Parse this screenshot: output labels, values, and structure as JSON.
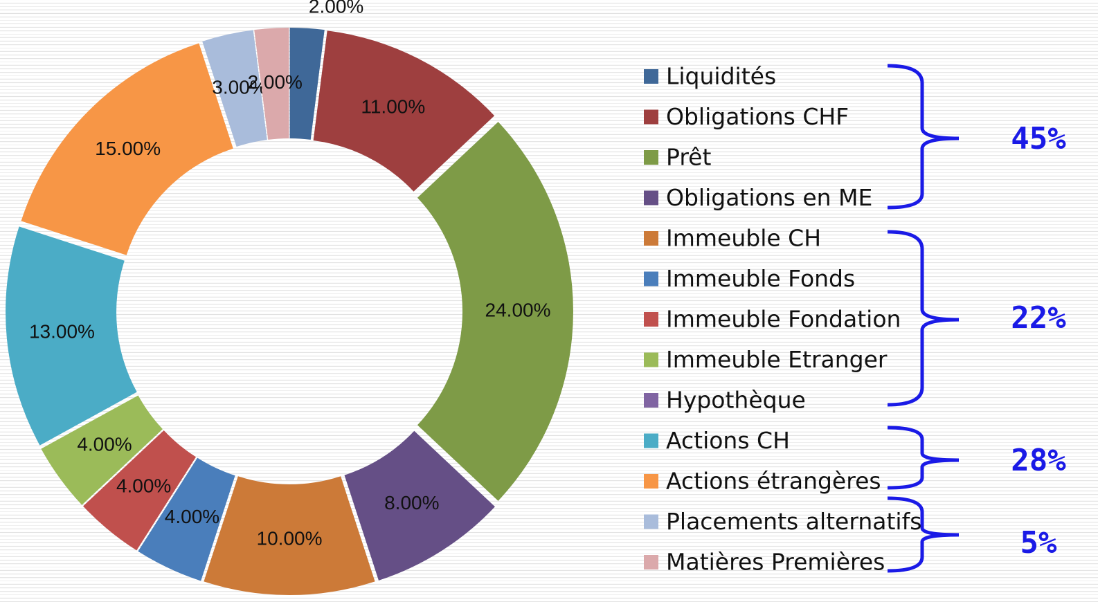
{
  "chart_data": {
    "type": "donut",
    "categories": [
      "Liquidités",
      "Obligations CHF",
      "Prêt",
      "Obligations en ME",
      "Immeuble CH",
      "Immeuble Fonds",
      "Immeuble Fondation",
      "Immeuble Etranger",
      "Hypothèque",
      "Actions CH",
      "Actions étrangères",
      "Placements alternatifs",
      "Matières Premières"
    ],
    "values": [
      2,
      11,
      24,
      8,
      10,
      4,
      4,
      4,
      0,
      13,
      15,
      3,
      2
    ],
    "value_labels": [
      "2.00%",
      "11.00%",
      "24.00%",
      "8.00%",
      "10.00%",
      "4.00%",
      "4.00%",
      "4.00%",
      null,
      "13.00%",
      "15.00%",
      "3.00%",
      "2.00%"
    ],
    "colors": [
      "#3f6898",
      "#9e3f3f",
      "#7e9b47",
      "#654f86",
      "#cc7a38",
      "#4a7ebb",
      "#c0504d",
      "#9bbb59",
      "#8064a2",
      "#4bacc6",
      "#f79646",
      "#a9bcdb",
      "#dba9ab"
    ],
    "annotations": [
      "45%",
      "22%",
      "28%",
      "5%"
    ],
    "legend": "right"
  }
}
